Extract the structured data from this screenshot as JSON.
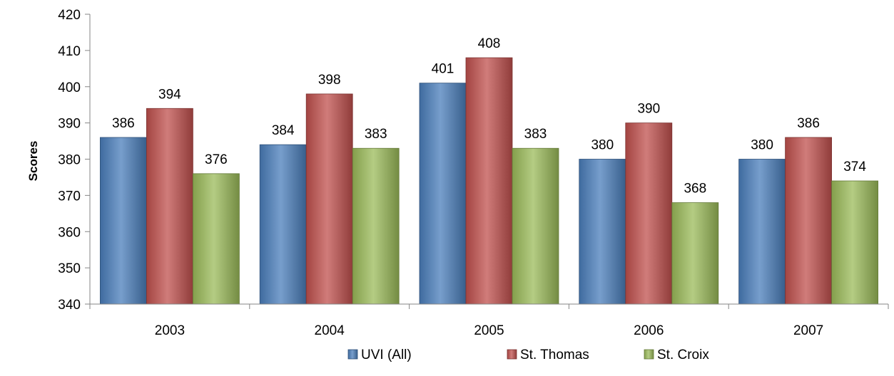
{
  "chart_data": {
    "type": "bar",
    "title": "",
    "xlabel": "",
    "ylabel": "Scores",
    "ylim": [
      340,
      420
    ],
    "ytick_step": 10,
    "grid": false,
    "legend_position": "bottom",
    "data_labels": true,
    "categories": [
      "2003",
      "2004",
      "2005",
      "2006",
      "2007"
    ],
    "series": [
      {
        "name": "UVI (All)",
        "color": "#4A7EBB",
        "values": [
          386,
          384,
          401,
          380,
          380
        ]
      },
      {
        "name": "St. Thomas",
        "color": "#C0504D",
        "values": [
          394,
          398,
          408,
          390,
          386
        ]
      },
      {
        "name": "St. Croix",
        "color": "#9BBB59",
        "values": [
          376,
          383,
          383,
          368,
          374
        ]
      }
    ]
  }
}
